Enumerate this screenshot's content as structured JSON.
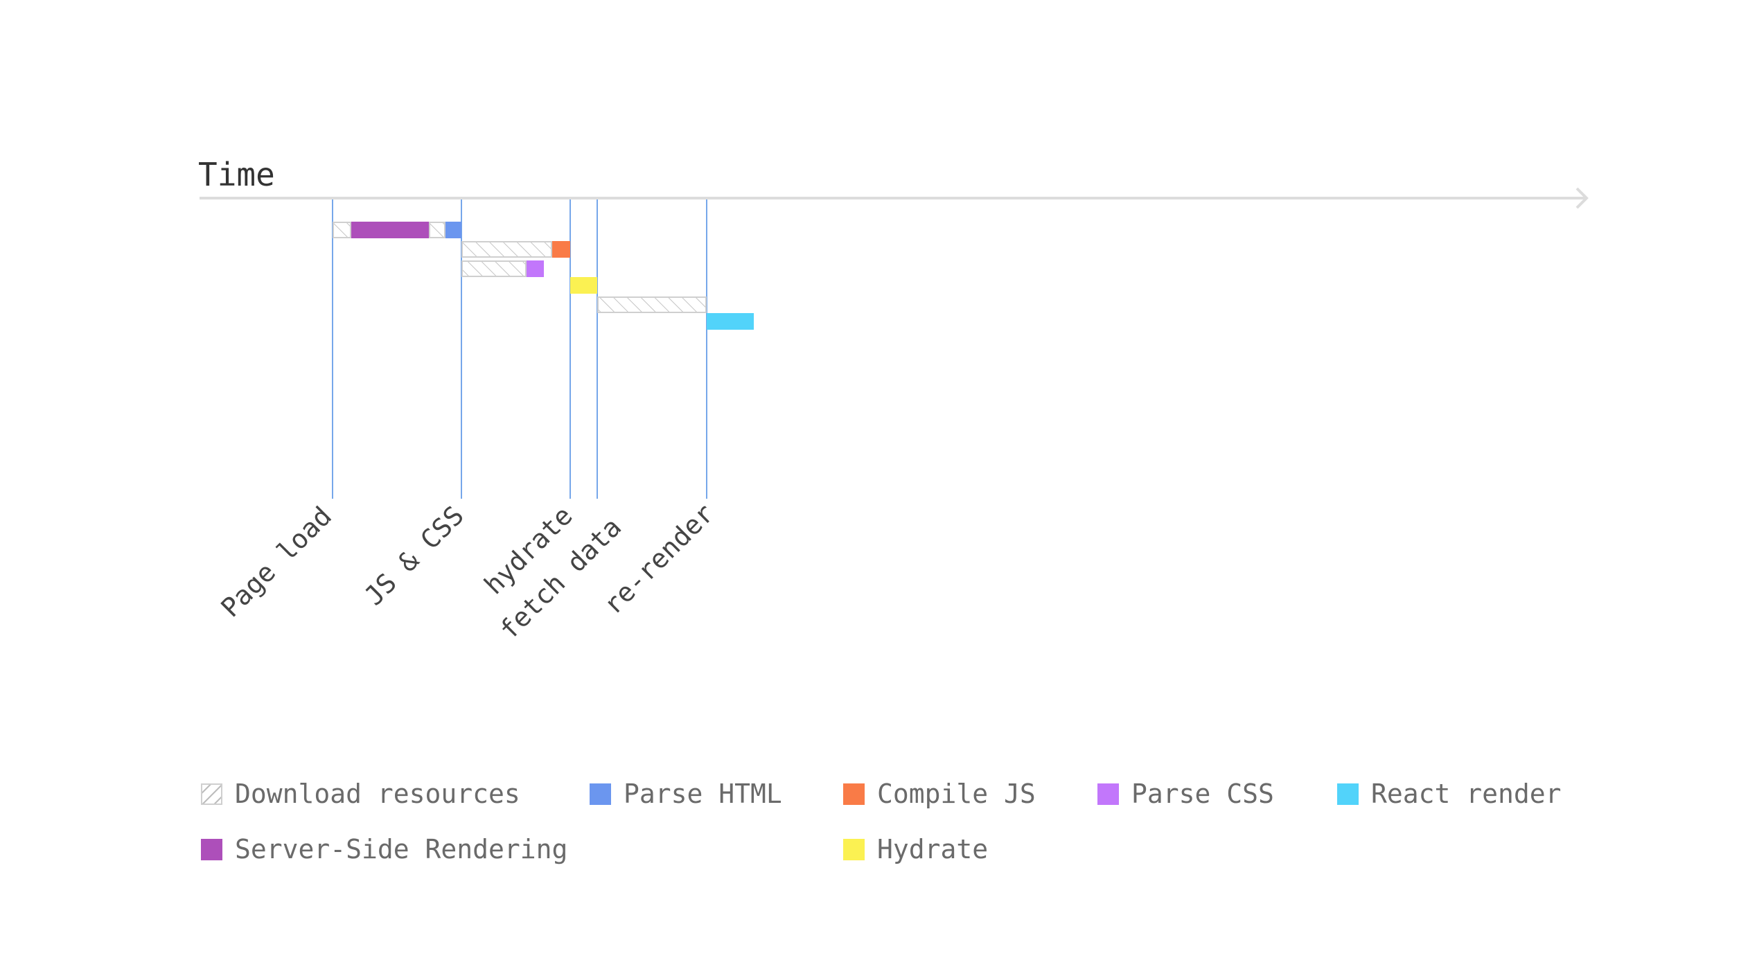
{
  "axis": {
    "title": "Time"
  },
  "milestones": [
    {
      "id": "page-load",
      "label": "Page load",
      "t": 0
    },
    {
      "id": "js-css",
      "label": "JS & CSS",
      "t": 186
    },
    {
      "id": "hydrate",
      "label": "hydrate",
      "t": 343
    },
    {
      "id": "fetch-data",
      "label": "fetch data",
      "t": 382
    },
    {
      "id": "re-render",
      "label": "re-render",
      "t": 540
    }
  ],
  "colors": {
    "download": "#d4d4d4",
    "ssr": "#ad4fba",
    "parse_html": "#6b96ef",
    "compile_js": "#f97b47",
    "parse_css": "#c277fb",
    "hydrate": "#fbf152",
    "react_render": "#52d3fa",
    "milestone_line": "#76a7ea",
    "axis": "#dcdcdc"
  },
  "tasks": [
    {
      "row": 0,
      "type": "download",
      "start": 0,
      "end": 27
    },
    {
      "row": 0,
      "type": "ssr",
      "start": 27,
      "end": 139
    },
    {
      "row": 0,
      "type": "download",
      "start": 139,
      "end": 163
    },
    {
      "row": 0,
      "type": "parse_html",
      "start": 163,
      "end": 186
    },
    {
      "row": 1,
      "type": "download",
      "start": 186,
      "end": 317
    },
    {
      "row": 1,
      "type": "compile_js",
      "start": 317,
      "end": 343
    },
    {
      "row": 2,
      "type": "download",
      "start": 186,
      "end": 280
    },
    {
      "row": 2,
      "type": "parse_css",
      "start": 280,
      "end": 305
    },
    {
      "row": 3,
      "type": "hydrate",
      "start": 343,
      "end": 382
    },
    {
      "row": 4,
      "type": "download",
      "start": 382,
      "end": 540
    },
    {
      "row": 5,
      "type": "react_render",
      "start": 540,
      "end": 608
    }
  ],
  "legend": [
    {
      "type": "download",
      "label": "Download resources",
      "icon": "hatched-square"
    },
    {
      "type": "parse_html",
      "label": "Parse HTML",
      "icon": "square"
    },
    {
      "type": "compile_js",
      "label": "Compile JS",
      "icon": "square"
    },
    {
      "type": "parse_css",
      "label": "Parse CSS",
      "icon": "square"
    },
    {
      "type": "react_render",
      "label": "React render",
      "icon": "square"
    },
    {
      "type": "ssr",
      "label": "Server-Side Rendering",
      "icon": "square"
    },
    {
      "type": "hydrate",
      "label": "Hydrate",
      "icon": "square"
    }
  ]
}
